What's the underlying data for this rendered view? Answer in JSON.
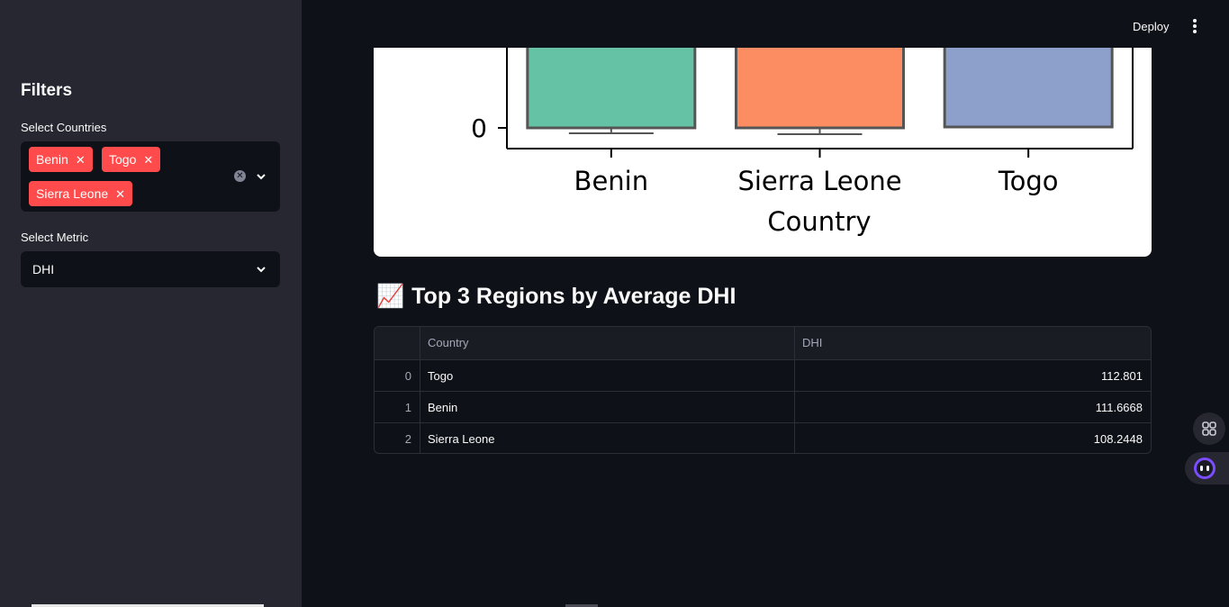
{
  "sidebar": {
    "title": "Filters",
    "countries_label": "Select Countries",
    "selected_countries": [
      "Benin",
      "Togo",
      "Sierra Leone"
    ],
    "metric_label": "Select Metric",
    "metric_value": "DHI"
  },
  "header": {
    "deploy_label": "Deploy"
  },
  "chart_data": {
    "type": "box",
    "categories": [
      "Benin",
      "Sierra Leone",
      "Togo"
    ],
    "xlabel": "Country",
    "visible_yticks": [
      0
    ],
    "colors": [
      "#66c2a5",
      "#fc8d62",
      "#8da0cb"
    ]
  },
  "section": {
    "emoji": "📈",
    "title": "Top 3 Regions by Average DHI"
  },
  "table": {
    "columns": [
      "",
      "Country",
      "DHI"
    ],
    "rows": [
      {
        "index": "0",
        "country": "Togo",
        "value": "112.801"
      },
      {
        "index": "1",
        "country": "Benin",
        "value": "111.6668"
      },
      {
        "index": "2",
        "country": "Sierra Leone",
        "value": "108.2448"
      }
    ]
  }
}
